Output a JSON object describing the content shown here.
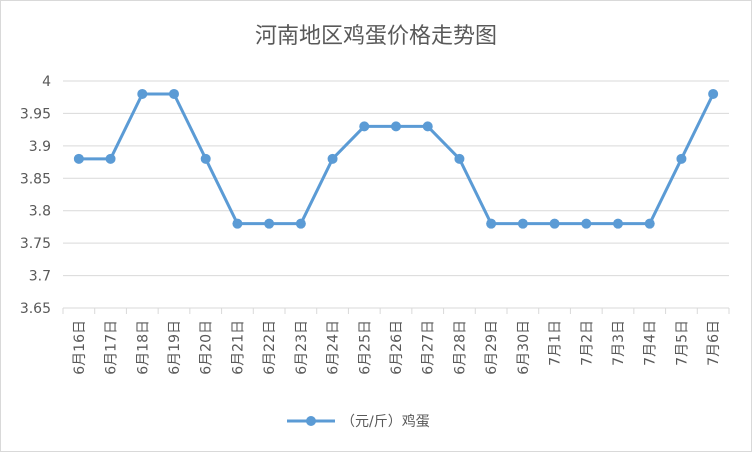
{
  "chart_data": {
    "type": "line",
    "title": "河南地区鸡蛋价格走势图",
    "xlabel": "",
    "ylabel": "",
    "categories": [
      "6月16日",
      "6月17日",
      "6月18日",
      "6月19日",
      "6月20日",
      "6月21日",
      "6月22日",
      "6月23日",
      "6月24日",
      "6月25日",
      "6月26日",
      "6月27日",
      "6月28日",
      "6月29日",
      "6月30日",
      "7月1日",
      "7月2日",
      "7月3日",
      "7月4日",
      "7月5日",
      "7月6日"
    ],
    "series": [
      {
        "name": "（元/斤）鸡蛋",
        "values": [
          3.88,
          3.88,
          3.98,
          3.98,
          3.88,
          3.78,
          3.78,
          3.78,
          3.88,
          3.93,
          3.93,
          3.93,
          3.88,
          3.78,
          3.78,
          3.78,
          3.78,
          3.78,
          3.78,
          3.88,
          3.98
        ]
      }
    ],
    "ylim": [
      3.65,
      4
    ],
    "yticks": [
      "4",
      "3.95",
      "3.9",
      "3.85",
      "3.8",
      "3.75",
      "3.7",
      "3.65"
    ],
    "grid": true,
    "legend_position": "bottom",
    "line_color": "#5b9bd5",
    "grid_color": "#d9d9d9"
  }
}
